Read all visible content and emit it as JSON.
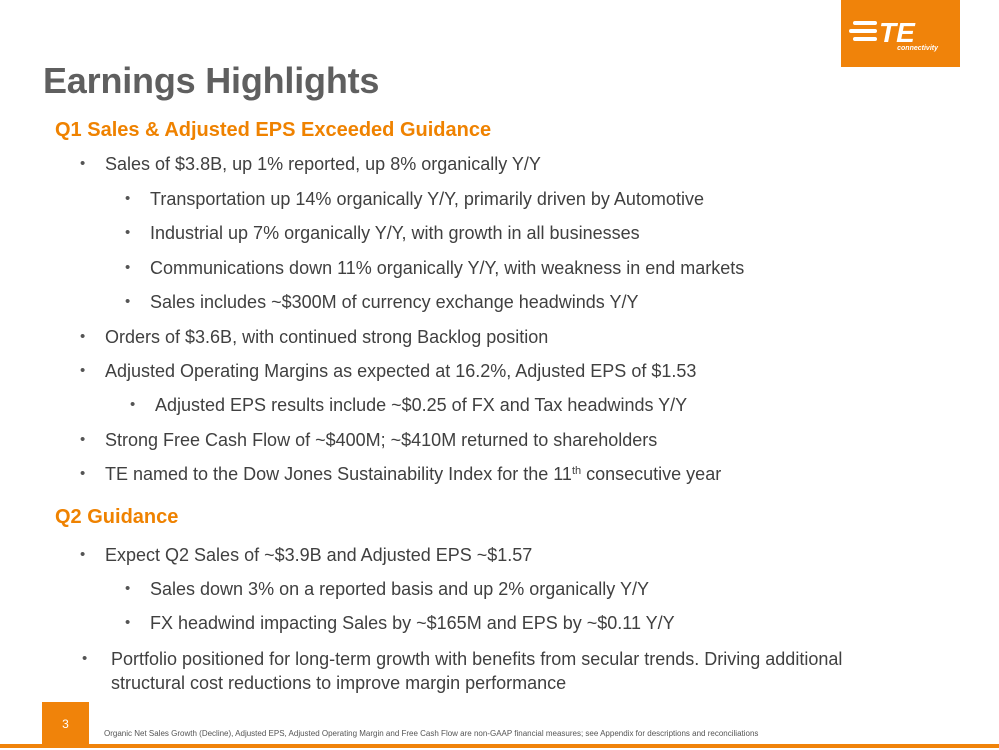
{
  "logo": {
    "text": "TE",
    "subtitle": "connectivity",
    "color": "#f0830a"
  },
  "title": "Earnings Highlights",
  "section1": {
    "heading": "Q1 Sales & Adjusted EPS Exceeded Guidance",
    "sales": "Sales of $3.8B, up 1% reported, up 8% organically Y/Y",
    "transportation": "Transportation up 14% organically Y/Y, primarily driven by Automotive",
    "industrial": "Industrial up 7% organically Y/Y, with growth in all businesses",
    "communications": "Communications down 11% organically Y/Y, with weakness in end markets",
    "currency": "Sales includes ~$300M of currency exchange headwinds Y/Y",
    "orders": "Orders of $3.6B, with continued strong Backlog position",
    "margins": "Adjusted Operating Margins as expected at 16.2%, Adjusted EPS of $1.53",
    "eps_results": "Adjusted EPS results include ~$0.25 of FX and Tax headwinds Y/Y",
    "cash_flow": "Strong Free Cash Flow of ~$400M; ~$410M returned to shareholders",
    "dow_jones_before": "TE named to the Dow Jones Sustainability Index for the 11",
    "dow_jones_sup": "th",
    "dow_jones_after": " consecutive year"
  },
  "section2": {
    "heading": "Q2 Guidance",
    "expect": "Expect Q2 Sales of ~$3.9B and Adjusted EPS ~$1.57",
    "sales_down": "Sales down 3% on a reported basis and up 2% organically Y/Y",
    "fx_headwind": "FX headwind impacting Sales by ~$165M and EPS by ~$0.11 Y/Y",
    "portfolio": "Portfolio positioned for long-term growth with benefits from secular trends. Driving additional structural cost reductions to improve margin performance"
  },
  "footer": {
    "page_number": "3",
    "note": "Organic Net Sales Growth (Decline), Adjusted EPS, Adjusted Operating Margin and Free Cash Flow are non-GAAP financial measures; see Appendix for descriptions and reconciliations"
  },
  "colors": {
    "accent": "#ef8200",
    "title": "#5f5f5f",
    "body": "#404040"
  }
}
